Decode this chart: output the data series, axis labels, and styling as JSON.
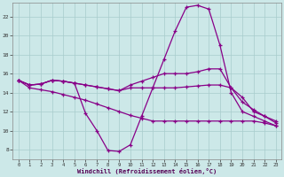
{
  "xlabel": "Windchill (Refroidissement éolien,°C)",
  "background_color": "#cce8e8",
  "grid_color": "#a8cccc",
  "line_color": "#880088",
  "xlim": [
    -0.5,
    23.5
  ],
  "ylim": [
    7,
    23.5
  ],
  "yticks": [
    8,
    10,
    12,
    14,
    16,
    18,
    20,
    22
  ],
  "xticks": [
    0,
    1,
    2,
    3,
    4,
    5,
    6,
    7,
    8,
    9,
    10,
    11,
    12,
    13,
    14,
    15,
    16,
    17,
    18,
    19,
    20,
    21,
    22,
    23
  ],
  "series": [
    [
      15.3,
      14.8,
      14.9,
      15.3,
      15.2,
      15.0,
      11.8,
      10.0,
      7.9,
      7.8,
      8.5,
      11.5,
      14.5,
      17.5,
      20.5,
      23.0,
      23.2,
      22.8,
      19.0,
      14.0,
      12.0,
      11.5,
      11.0,
      10.5
    ],
    [
      15.3,
      14.8,
      14.9,
      15.3,
      15.2,
      15.0,
      14.8,
      14.6,
      14.4,
      14.2,
      14.8,
      15.2,
      15.6,
      16.0,
      16.0,
      16.0,
      16.2,
      16.5,
      16.5,
      14.5,
      13.0,
      12.2,
      11.5,
      10.8
    ],
    [
      15.3,
      14.8,
      14.9,
      15.3,
      15.2,
      15.0,
      14.8,
      14.6,
      14.4,
      14.2,
      14.5,
      14.5,
      14.5,
      14.5,
      14.5,
      14.6,
      14.7,
      14.8,
      14.8,
      14.5,
      13.5,
      12.0,
      11.5,
      11.0
    ],
    [
      15.3,
      14.5,
      14.3,
      14.1,
      13.8,
      13.5,
      13.2,
      12.8,
      12.4,
      12.0,
      11.6,
      11.3,
      11.0,
      11.0,
      11.0,
      11.0,
      11.0,
      11.0,
      11.0,
      11.0,
      11.0,
      11.0,
      10.8,
      10.5
    ]
  ]
}
